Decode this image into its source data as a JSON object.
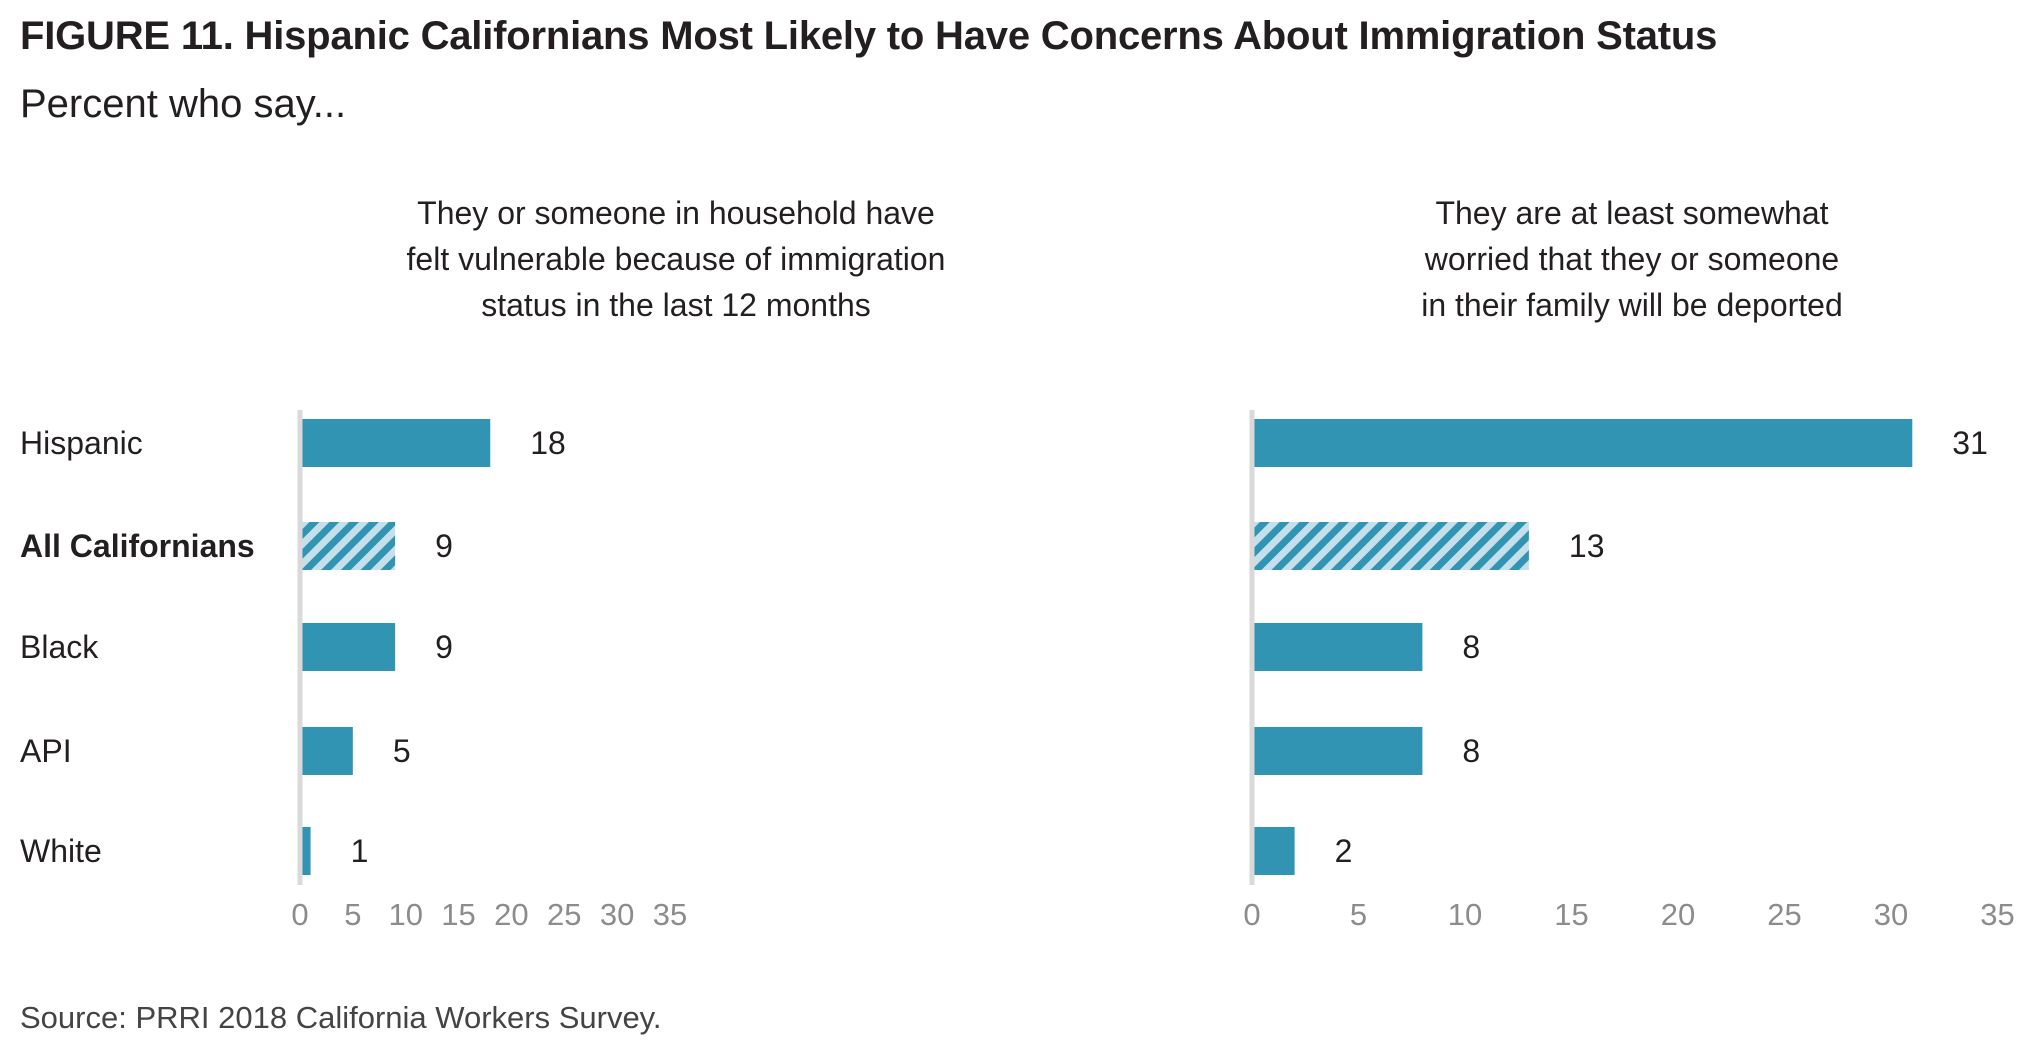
{
  "title": "FIGURE 11. Hispanic Californians Most Likely to Have Concerns About Immigration Status",
  "subtitle": "Percent who say...",
  "source": "Source: PRRI 2018 California Workers Survey.",
  "colors": {
    "bar": "#3294b3",
    "axis": "#d9d9d9",
    "tick": "#8c8c8c",
    "hatch_light": "#c5e0ea"
  },
  "chart_data": [
    {
      "type": "bar",
      "orientation": "horizontal",
      "title": "They or someone in household have felt vulnerable because of immigration status in the last 12 months",
      "title_lines": [
        "They or someone in household have",
        "felt vulnerable because of immigration",
        "status in the last 12 months"
      ],
      "categories": [
        "Hispanic",
        "All Californians",
        "Black",
        "API",
        "White"
      ],
      "values": [
        18,
        9,
        9,
        5,
        1
      ],
      "highlight": "All Californians",
      "xlim": [
        0,
        35
      ],
      "xticks": [
        0,
        5,
        10,
        15,
        20,
        25,
        30,
        35
      ],
      "grid": false
    },
    {
      "type": "bar",
      "orientation": "horizontal",
      "title": "They are at least somewhat worried that they or someone in their family will be deported",
      "title_lines": [
        "They are at least somewhat",
        "worried that they or someone",
        "in their family will be deported"
      ],
      "categories": [
        "Hispanic",
        "All Californians",
        "Black",
        "API",
        "White"
      ],
      "values": [
        31,
        13,
        8,
        8,
        2
      ],
      "highlight": "All Californians",
      "xlim": [
        0,
        35
      ],
      "xticks": [
        0,
        5,
        10,
        15,
        20,
        25,
        30,
        35
      ],
      "grid": false
    }
  ]
}
